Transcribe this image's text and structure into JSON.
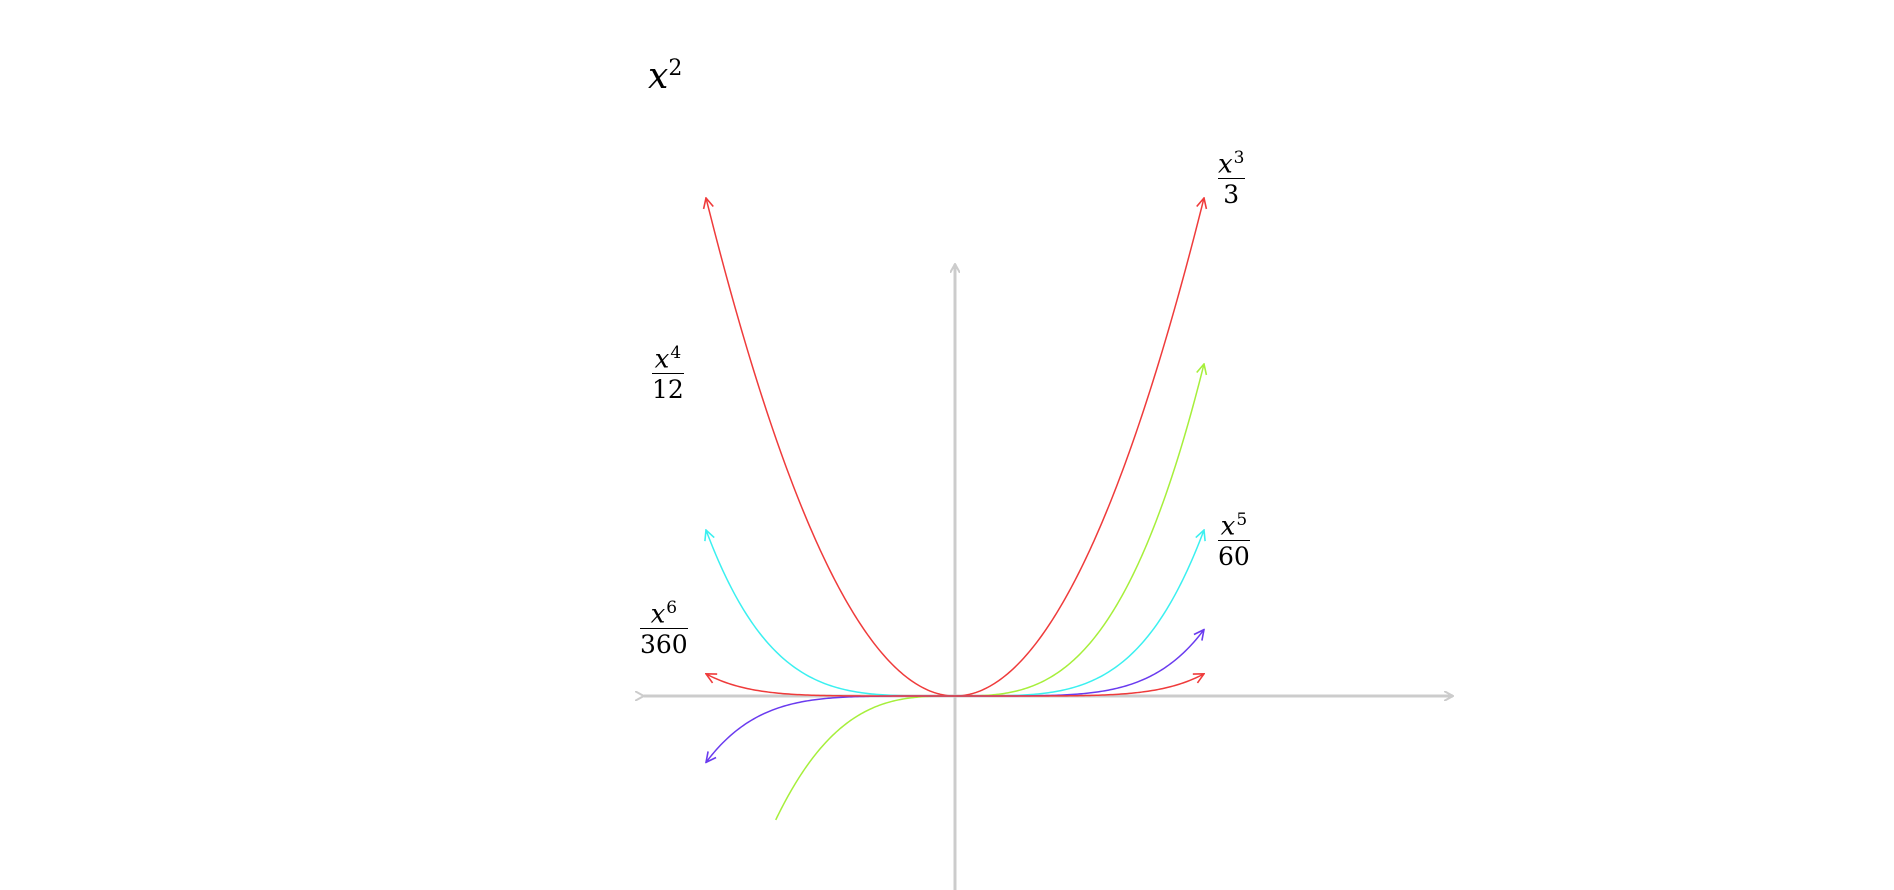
{
  "chart_data": {
    "type": "line",
    "title": "",
    "xlabel": "",
    "ylabel": "",
    "xlim": [
      -2.5,
      4.0
    ],
    "ylim": [
      -1.6,
      5.0
    ],
    "grid": false,
    "axes_color": "#cccccc",
    "series": [
      {
        "name": "x^2",
        "formula": "x^2/1",
        "power": 2,
        "divisor": 1,
        "color": "#ef3b3b",
        "x_range": [
          -2,
          2
        ],
        "label": {
          "base": "x",
          "exp": "2",
          "den": "",
          "position": "top-left"
        }
      },
      {
        "name": "x^3/3",
        "formula": "x^3/3",
        "power": 3,
        "divisor": 3,
        "color": "#a6ef3b",
        "x_range": [
          -1.44,
          2
        ],
        "label": {
          "base": "x",
          "exp": "3",
          "den": "3",
          "position": "right"
        }
      },
      {
        "name": "x^4/12",
        "formula": "x^4/12",
        "power": 4,
        "divisor": 12,
        "color": "#3bf0f0",
        "x_range": [
          -2,
          2
        ],
        "label": {
          "base": "x",
          "exp": "4",
          "den": "12",
          "position": "left"
        }
      },
      {
        "name": "x^5/60",
        "formula": "x^5/60",
        "power": 5,
        "divisor": 60,
        "color": "#6a3bef",
        "x_range": [
          -2,
          2
        ],
        "label": {
          "base": "x",
          "exp": "5",
          "den": "60",
          "position": "right"
        }
      },
      {
        "name": "x^6/360",
        "formula": "x^6/360",
        "power": 6,
        "divisor": 360,
        "color": "#ef3b3b",
        "x_range": [
          -2,
          2
        ],
        "label": {
          "base": "x",
          "exp": "6",
          "den": "360",
          "position": "left"
        }
      }
    ]
  }
}
